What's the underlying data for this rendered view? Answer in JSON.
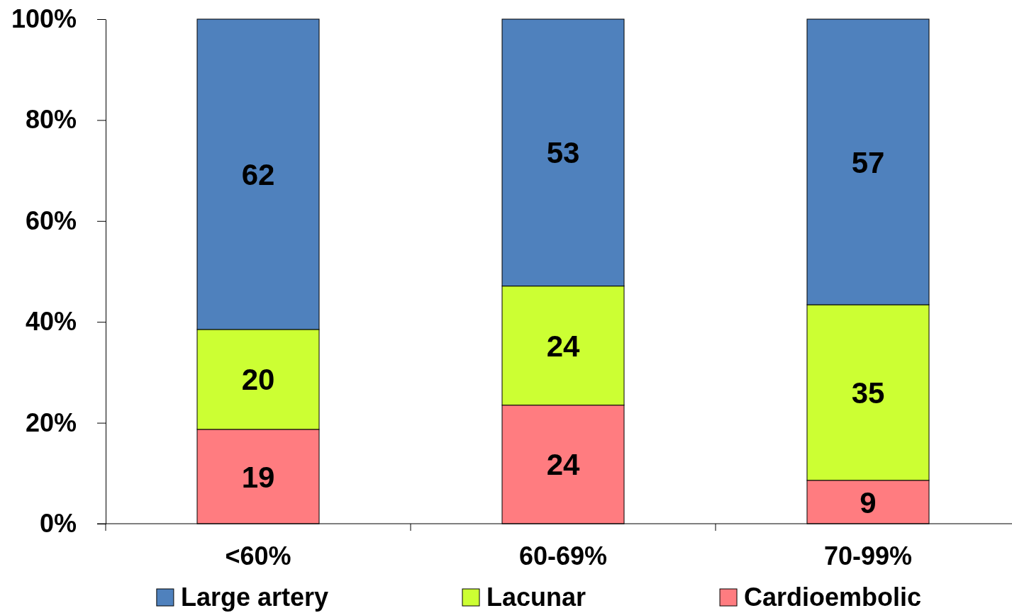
{
  "chart_data": {
    "type": "bar",
    "stacked": true,
    "categories": [
      "<60%",
      "60-69%",
      "70-99%"
    ],
    "series": [
      {
        "name": "Cardioembolic",
        "color": "#ff7c80",
        "values": [
          18.7,
          23.5,
          8.6
        ],
        "value_labels": [
          "19",
          "24",
          "9"
        ]
      },
      {
        "name": "Lacunar",
        "color": "#ccff33",
        "values": [
          19.8,
          23.6,
          34.8
        ],
        "value_labels": [
          "20",
          "24",
          "35"
        ]
      },
      {
        "name": "Large artery",
        "color": "#4f81bd",
        "values": [
          61.5,
          52.9,
          56.6
        ],
        "value_labels": [
          "62",
          "53",
          "57"
        ]
      }
    ],
    "ylim": [
      0,
      100
    ],
    "yticks": [
      {
        "value": 0,
        "label": "0%"
      },
      {
        "value": 20,
        "label": "20%"
      },
      {
        "value": 40,
        "label": "40%"
      },
      {
        "value": 60,
        "label": "60%"
      },
      {
        "value": 80,
        "label": "80%"
      },
      {
        "value": 100,
        "label": "100%"
      }
    ],
    "grid": false,
    "legend": "bottom"
  }
}
